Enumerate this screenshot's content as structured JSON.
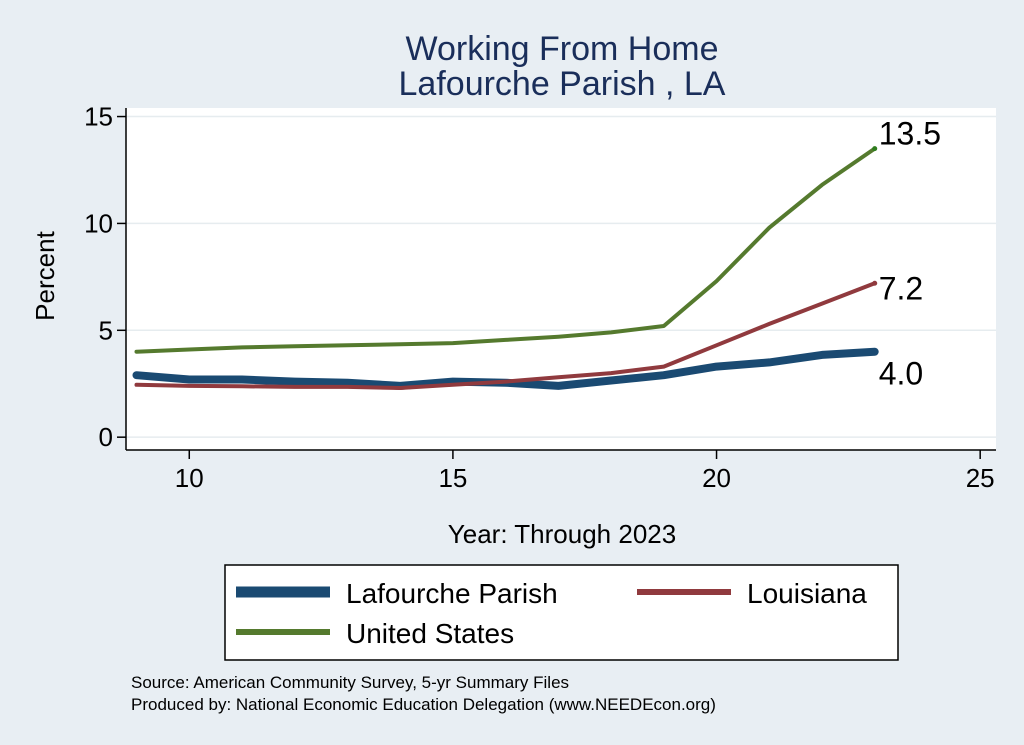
{
  "chart_data": {
    "type": "line",
    "title": "Working From Home",
    "subtitle": "Lafourche Parish , LA",
    "xlabel": "Year: Through 2023",
    "ylabel": "Percent",
    "xlim": [
      8.8,
      25.3
    ],
    "ylim": [
      -0.6,
      15.4
    ],
    "xticks": [
      10,
      15,
      20,
      25
    ],
    "yticks": [
      0,
      5,
      10,
      15
    ],
    "x": [
      9,
      10,
      11,
      12,
      13,
      14,
      15,
      16,
      17,
      18,
      19,
      20,
      21,
      22,
      23
    ],
    "series": [
      {
        "name": "Lafourche Parish",
        "color": "#1a4a72",
        "values": [
          2.9,
          2.7,
          2.7,
          2.6,
          2.55,
          2.4,
          2.6,
          2.55,
          2.4,
          2.65,
          2.9,
          3.3,
          3.5,
          3.85,
          4.0
        ],
        "end_label": "4.0"
      },
      {
        "name": "Louisiana",
        "color": "#903a3e",
        "values": [
          2.45,
          2.4,
          2.38,
          2.35,
          2.35,
          2.3,
          2.45,
          2.6,
          2.8,
          3.0,
          3.3,
          4.3,
          5.3,
          6.25,
          7.2
        ],
        "end_label": "7.2"
      },
      {
        "name": "United States",
        "color": "#557a2e",
        "values": [
          4.0,
          4.1,
          4.2,
          4.25,
          4.3,
          4.35,
          4.4,
          4.55,
          4.7,
          4.9,
          5.2,
          7.3,
          9.8,
          11.8,
          13.5
        ],
        "end_label": "13.5"
      }
    ],
    "legend": {
      "position": "bottom",
      "items": [
        "Lafourche Parish",
        "Louisiana",
        "United States"
      ]
    },
    "grid": true
  },
  "source": {
    "line1": "Source: American Community Survey, 5-yr Summary Files",
    "line2": "Produced by: National Economic Education Delegation (www.NEEDEcon.org)"
  }
}
